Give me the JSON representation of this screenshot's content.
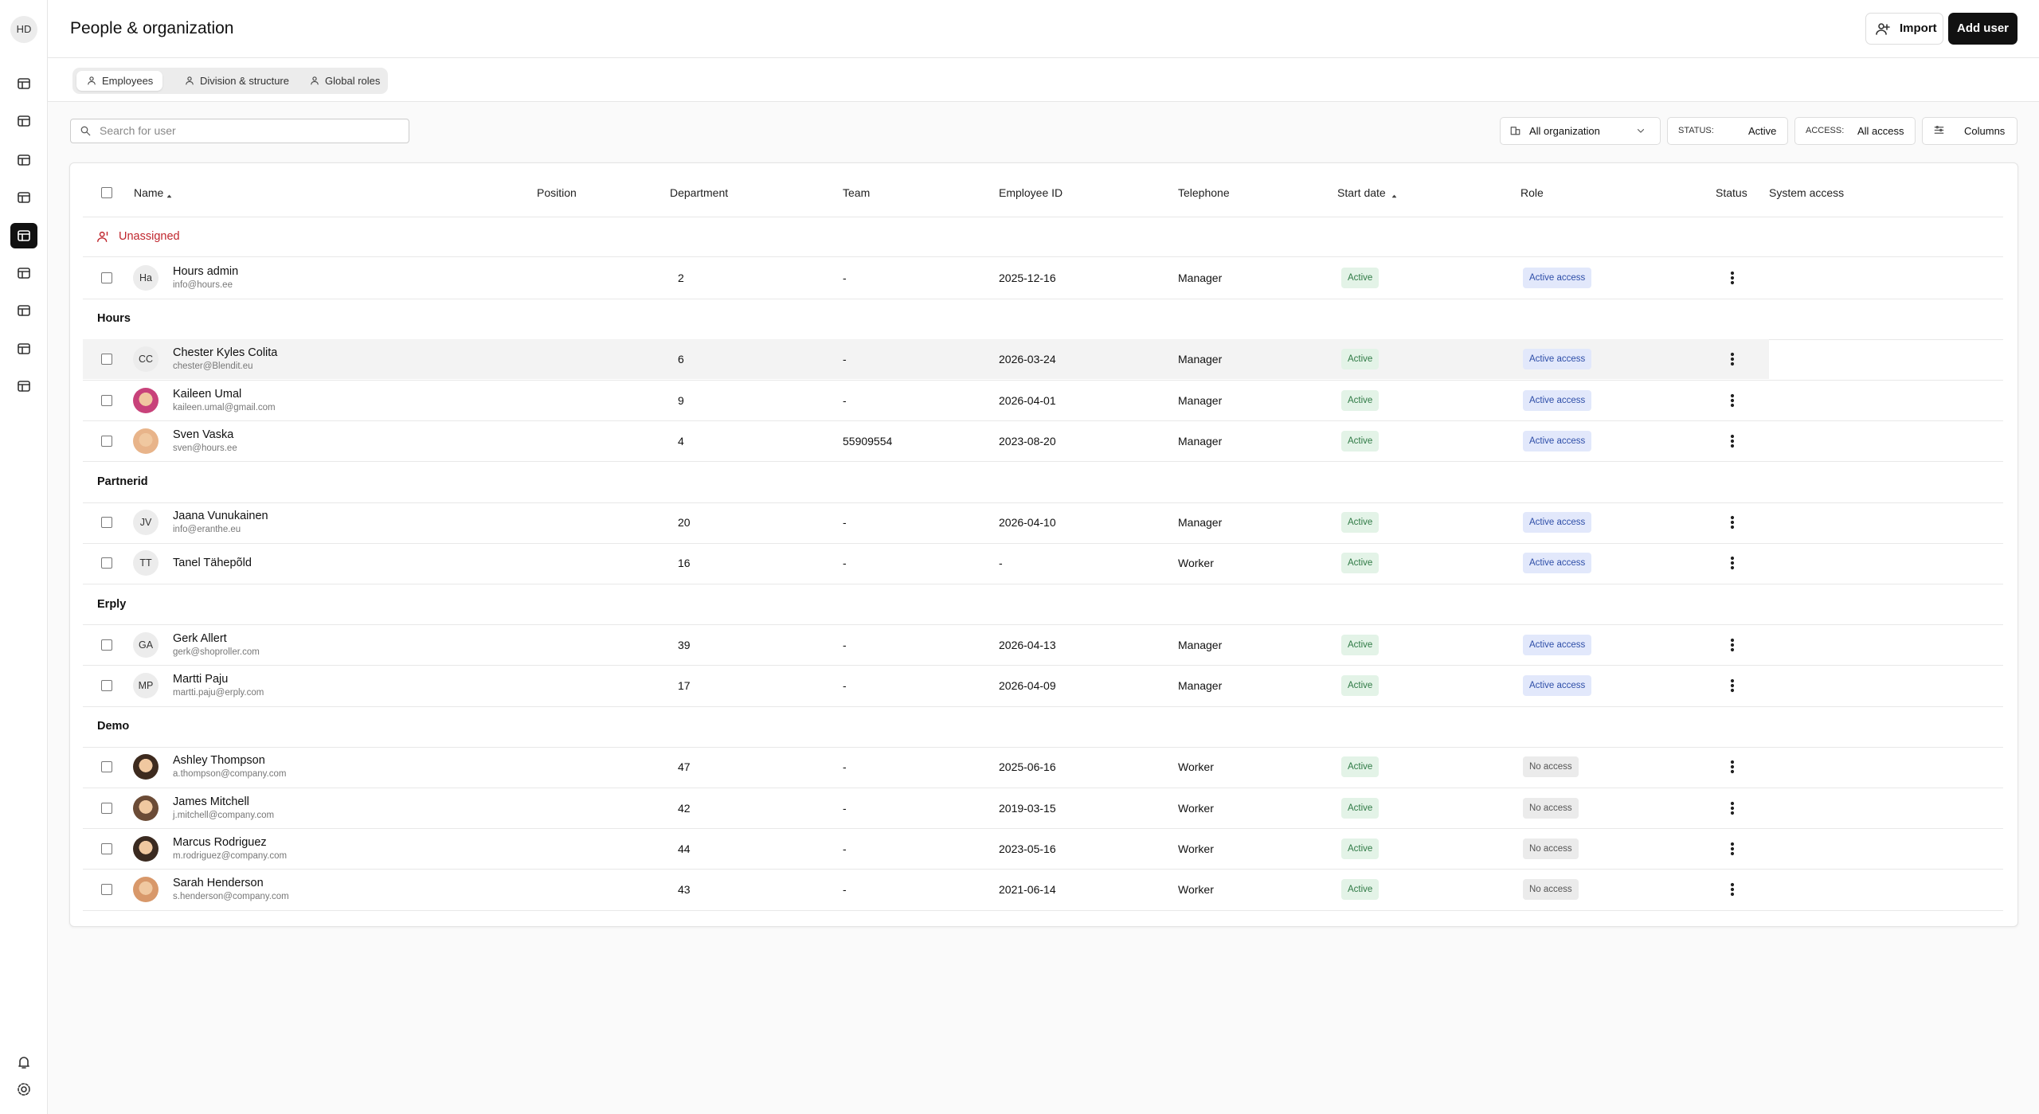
{
  "user_initials": "HD",
  "header": {
    "title": "People & organization",
    "import": "Import",
    "add_user": "Add user"
  },
  "tabs": [
    "Employees",
    "Division & structure",
    "Global roles"
  ],
  "search_placeholder": "Search for user",
  "filters": {
    "organization": "All organization",
    "status_label": "STATUS:",
    "status_value": "Active",
    "access_label": "ACCESS:",
    "access_value": "All access",
    "columns": "Columns"
  },
  "table": {
    "columns": [
      "Name",
      "Position",
      "Department",
      "Team",
      "Employee ID",
      "Telephone",
      "Start date",
      "Role",
      "Status",
      "System access"
    ],
    "groups": [
      {
        "name": "Unassigned",
        "rows": [
          {
            "initials": "Ha",
            "name": "Hours admin",
            "email": "info@hours.ee",
            "number": 2,
            "team": "-",
            "date": "2025-12-16",
            "role": "Manager",
            "status": "Active",
            "access": "Active access"
          }
        ]
      },
      {
        "name": "Hours",
        "rows": [
          {
            "initials": "CC",
            "name": "Chester Kyles Colita",
            "email": "chester@Blendit.eu",
            "number": 6,
            "team": "-",
            "date": "2026-03-24",
            "role": "Manager",
            "status": "Active",
            "access": "Active access"
          },
          {
            "initials": null,
            "name": "Kaileen Umal",
            "email": "kaileen.umal@gmail.com",
            "number": 9,
            "team": "-",
            "date": "2026-04-01",
            "role": "Manager",
            "status": "Active",
            "access": "Active access"
          },
          {
            "initials": null,
            "name": "Sven Vaska",
            "email": "sven@hours.ee",
            "number": 4,
            "team": "55909554",
            "date": "2023-08-20",
            "role": "Manager",
            "status": "Active",
            "access": "Active access"
          }
        ]
      },
      {
        "name": "Partnerid",
        "rows": [
          {
            "initials": "JV",
            "name": "Jaana Vunukainen",
            "email": "info@eranthe.eu",
            "number": 20,
            "team": "-",
            "date": "2026-04-10",
            "role": "Manager",
            "status": "Active",
            "access": "Active access"
          },
          {
            "initials": "TT",
            "name": "Tanel Tähepõld",
            "email": null,
            "number": 16,
            "team": "-",
            "date": "-",
            "role": "Worker",
            "status": "Active",
            "access": "Active access"
          }
        ]
      },
      {
        "name": "Erply",
        "rows": [
          {
            "initials": "GA",
            "name": "Gerk Allert",
            "email": "gerk@shoproller.com",
            "number": 39,
            "team": "-",
            "date": "2026-04-13",
            "role": "Manager",
            "status": "Active",
            "access": "Active access"
          },
          {
            "initials": "MP",
            "name": "Martti Paju",
            "email": "martti.paju@erply.com",
            "number": 17,
            "team": "-",
            "date": "2026-04-09",
            "role": "Manager",
            "status": "Active",
            "access": "Active access"
          }
        ]
      },
      {
        "name": "Demo",
        "rows": [
          {
            "initials": null,
            "name": "Ashley Thompson",
            "email": "a.thompson@company.com",
            "number": 47,
            "team": "-",
            "date": "2025-06-16",
            "role": "Worker",
            "status": "Active",
            "access": "No access"
          },
          {
            "initials": null,
            "name": "James Mitchell",
            "email": "j.mitchell@company.com",
            "number": 42,
            "team": "-",
            "date": "2019-03-15",
            "role": "Worker",
            "status": "Active",
            "access": "No access"
          },
          {
            "initials": null,
            "name": "Marcus Rodriguez",
            "email": "m.rodriguez@company.com",
            "number": 44,
            "team": "-",
            "date": "2023-05-16",
            "role": "Worker",
            "status": "Active",
            "access": "No access"
          },
          {
            "initials": null,
            "name": "Sarah Henderson",
            "email": "s.henderson@company.com",
            "number": 43,
            "team": "-",
            "date": "2021-06-14",
            "role": "Worker",
            "status": "Active",
            "access": "No access"
          }
        ]
      }
    ]
  }
}
